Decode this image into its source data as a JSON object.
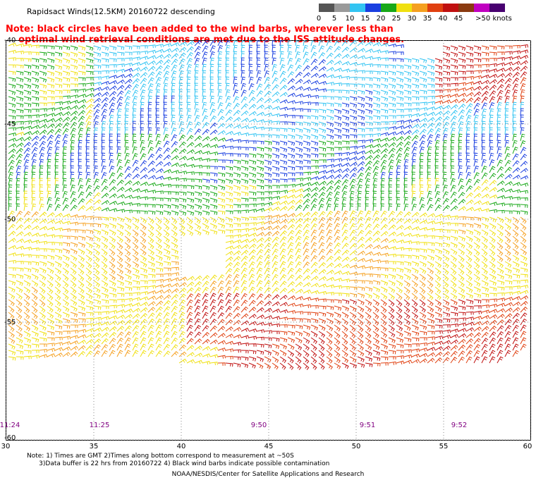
{
  "title": "Rapidsact Winds(12.5KM) 20160722 descending",
  "note": {
    "line1": "Note: black circles have been added to the wind barbs, wherever less than",
    "line2": "optimal wind retrieval conditions are met due to the ISS attitude changes."
  },
  "colorbar": {
    "labels": [
      "0",
      "5",
      "10",
      "15",
      "20",
      "25",
      "30",
      "35",
      "40",
      "45",
      ">50 knots"
    ],
    "colors": [
      "#555555",
      "#9a9a9a",
      "#33c4f2",
      "#1a3fe0",
      "#18a818",
      "#f0e010",
      "#f5a020",
      "#e04010",
      "#c01010",
      "#8a3a10",
      "#c000c0",
      "#480070"
    ]
  },
  "map": {
    "lat_labels": [
      "-40",
      "-45",
      "-50",
      "-55",
      "-60"
    ],
    "lon_labels": [
      "30",
      "35",
      "40",
      "45",
      "50",
      "55",
      "60"
    ],
    "time_labels": [
      "11:24",
      "11:25",
      "9:50",
      "9:51",
      "9:52"
    ],
    "gridline_color": "#888888"
  },
  "footnote": {
    "line1": "Note: 1) Times are GMT 2)Times along bottom correspond to measurement at ~50S",
    "line2": "3)Data buffer is 22 hrs from 20160722 4) Black wind barbs indicate possible contamination"
  },
  "credit": "NOAA/NESDIS/Center for Satellite Applications and Research"
}
